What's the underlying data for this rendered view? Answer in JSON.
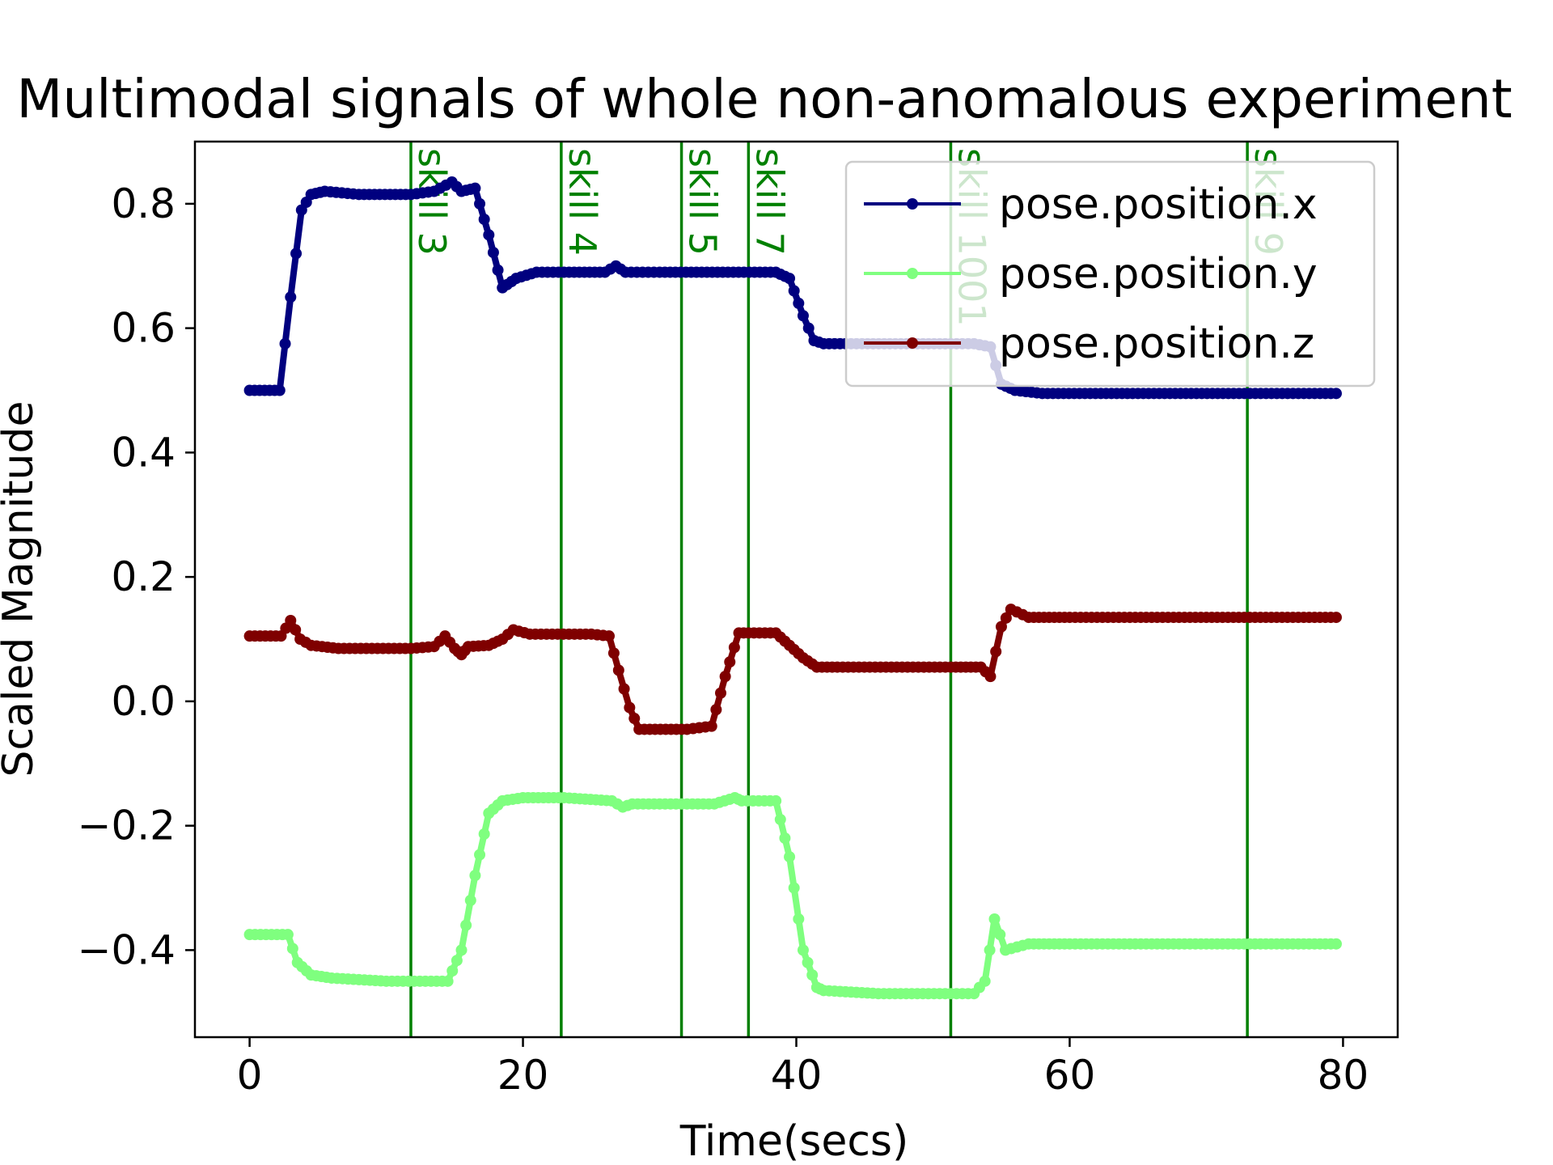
{
  "chart_data": {
    "type": "line",
    "title": "Multimodal signals of whole non-anomalous experiment",
    "xlabel": "Time(secs)",
    "ylabel": "Scaled Magnitude",
    "xlim": [
      -4,
      84
    ],
    "ylim": [
      -0.54,
      0.9
    ],
    "xticks": [
      0,
      20,
      40,
      60,
      80
    ],
    "yticks": [
      -0.4,
      -0.2,
      0.0,
      0.2,
      0.4,
      0.6,
      0.8
    ],
    "ytick_labels": [
      "−0.4",
      "−0.2",
      "0.0",
      "0.2",
      "0.4",
      "0.6",
      "0.8"
    ],
    "grid": false,
    "legend_position": "top-right",
    "skill_lines": [
      {
        "x": 11.8,
        "label": "skill 3"
      },
      {
        "x": 22.8,
        "label": "skill 4"
      },
      {
        "x": 31.6,
        "label": "skill 5"
      },
      {
        "x": 36.5,
        "label": "skill 7"
      },
      {
        "x": 51.3,
        "label": "skill 1001"
      },
      {
        "x": 73.0,
        "label": "skill 9"
      }
    ],
    "skill_color": "#008000",
    "series": [
      {
        "name": "pose.position.x",
        "color": "#00007f",
        "x": [
          0,
          2.2,
          3.0,
          3.8,
          4.5,
          5.5,
          8,
          11.8,
          13.5,
          14.8,
          15.5,
          16.5,
          17.5,
          18.5,
          19.5,
          21,
          23,
          26,
          26.8,
          27.5,
          30,
          35,
          38.5,
          39.5,
          40.5,
          41.3,
          42,
          44,
          51.3,
          53,
          54.2,
          55,
          56,
          58,
          65,
          72,
          79.5
        ],
        "y": [
          0.5,
          0.5,
          0.65,
          0.79,
          0.815,
          0.82,
          0.815,
          0.815,
          0.82,
          0.835,
          0.82,
          0.825,
          0.75,
          0.665,
          0.68,
          0.69,
          0.69,
          0.69,
          0.7,
          0.69,
          0.69,
          0.69,
          0.69,
          0.68,
          0.62,
          0.58,
          0.575,
          0.575,
          0.575,
          0.575,
          0.57,
          0.51,
          0.5,
          0.495,
          0.495,
          0.495,
          0.495
        ]
      },
      {
        "name": "pose.position.y",
        "color": "#7fff7f",
        "x": [
          0,
          2.8,
          3.5,
          4.5,
          6,
          10,
          14.5,
          15.5,
          16.5,
          17.5,
          18.5,
          20,
          23,
          26.5,
          27.3,
          28,
          30,
          34,
          35.5,
          36,
          38.5,
          39.5,
          40.5,
          41.5,
          42,
          46,
          51.3,
          53,
          53.8,
          54.5,
          55.3,
          57,
          60,
          70,
          79.5
        ],
        "y": [
          -0.375,
          -0.375,
          -0.42,
          -0.44,
          -0.445,
          -0.45,
          -0.45,
          -0.4,
          -0.28,
          -0.18,
          -0.16,
          -0.155,
          -0.155,
          -0.16,
          -0.17,
          -0.165,
          -0.165,
          -0.165,
          -0.155,
          -0.16,
          -0.16,
          -0.25,
          -0.4,
          -0.46,
          -0.465,
          -0.47,
          -0.47,
          -0.47,
          -0.45,
          -0.35,
          -0.4,
          -0.39,
          -0.39,
          -0.39,
          -0.39
        ]
      },
      {
        "name": "pose.position.z",
        "color": "#7f0000",
        "x": [
          0,
          2.3,
          3.0,
          3.7,
          4.5,
          6.5,
          11.8,
          13.5,
          14.3,
          15,
          15.5,
          16,
          17.5,
          18.5,
          19.3,
          20.5,
          25,
          26.3,
          27,
          27.8,
          28.5,
          32,
          33.8,
          34.8,
          35.8,
          36.5,
          38.5,
          39.5,
          40.5,
          41.5,
          43,
          51.3,
          53.5,
          54.2,
          55,
          55.7,
          57,
          60,
          70,
          79.5
        ],
        "y": [
          0.105,
          0.105,
          0.13,
          0.1,
          0.09,
          0.085,
          0.085,
          0.088,
          0.105,
          0.085,
          0.075,
          0.088,
          0.09,
          0.1,
          0.115,
          0.108,
          0.108,
          0.105,
          0.05,
          -0.01,
          -0.045,
          -0.045,
          -0.04,
          0.04,
          0.11,
          0.11,
          0.11,
          0.09,
          0.07,
          0.055,
          0.055,
          0.055,
          0.055,
          0.04,
          0.12,
          0.148,
          0.135,
          0.135,
          0.135,
          0.135
        ]
      }
    ]
  }
}
